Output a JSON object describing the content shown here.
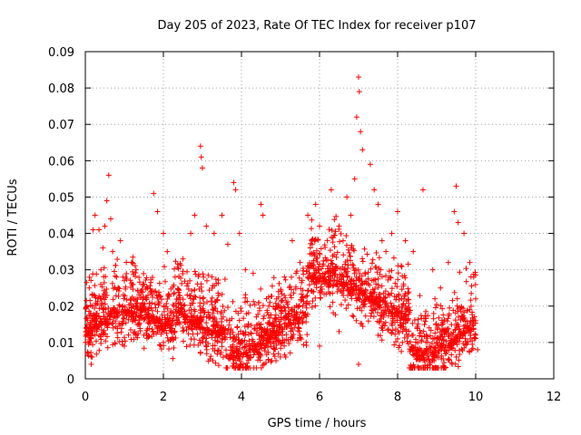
{
  "chart_data": {
    "type": "scatter",
    "title": "Day 205 of 2023, Rate Of TEC Index for receiver p107",
    "xlabel": "GPS time / hours",
    "ylabel": "ROTI / TECUs",
    "xlim": [
      0,
      12
    ],
    "ylim": [
      0,
      0.09
    ],
    "xticks": [
      0,
      2,
      4,
      6,
      8,
      10,
      12
    ],
    "xtick_labels": [
      "0",
      "2",
      "4",
      "6",
      "8",
      "10",
      "12"
    ],
    "yticks": [
      0,
      0.01,
      0.02,
      0.03,
      0.04,
      0.05,
      0.06,
      0.07,
      0.08,
      0.09
    ],
    "ytick_labels": [
      "0",
      "0.01",
      "0.02",
      "0.03",
      "0.04",
      "0.05",
      "0.06",
      "0.07",
      "0.08",
      "0.09"
    ],
    "grid": true,
    "marker": "+",
    "color": "#ff0000",
    "data_range_hours": [
      0,
      10
    ],
    "series": [
      {
        "name": "ROTI",
        "points": [
          [
            0.05,
            0.012
          ],
          [
            0.1,
            0.025
          ],
          [
            0.15,
            0.004
          ],
          [
            0.2,
            0.041
          ],
          [
            0.25,
            0.045
          ],
          [
            0.3,
            0.018
          ],
          [
            0.35,
            0.041
          ],
          [
            0.4,
            0.03
          ],
          [
            0.45,
            0.036
          ],
          [
            0.5,
            0.042
          ],
          [
            0.55,
            0.049
          ],
          [
            0.6,
            0.056
          ],
          [
            0.65,
            0.044
          ],
          [
            0.7,
            0.035
          ],
          [
            0.8,
            0.028
          ],
          [
            0.9,
            0.038
          ],
          [
            1.0,
            0.027
          ],
          [
            1.1,
            0.018
          ],
          [
            1.2,
            0.032
          ],
          [
            1.3,
            0.022
          ],
          [
            1.5,
            0.02
          ],
          [
            1.75,
            0.051
          ],
          [
            1.85,
            0.046
          ],
          [
            2.0,
            0.04
          ],
          [
            2.1,
            0.035
          ],
          [
            2.3,
            0.028
          ],
          [
            2.5,
            0.033
          ],
          [
            2.7,
            0.04
          ],
          [
            2.8,
            0.045
          ],
          [
            2.95,
            0.064
          ],
          [
            2.97,
            0.061
          ],
          [
            3.0,
            0.058
          ],
          [
            3.1,
            0.042
          ],
          [
            3.3,
            0.04
          ],
          [
            3.5,
            0.045
          ],
          [
            3.65,
            0.037
          ],
          [
            3.8,
            0.054
          ],
          [
            3.85,
            0.052
          ],
          [
            3.95,
            0.04
          ],
          [
            4.1,
            0.03
          ],
          [
            4.3,
            0.029
          ],
          [
            4.5,
            0.048
          ],
          [
            4.55,
            0.045
          ],
          [
            4.7,
            0.02
          ],
          [
            4.9,
            0.022
          ],
          [
            5.1,
            0.028
          ],
          [
            5.3,
            0.038
          ],
          [
            5.5,
            0.032
          ],
          [
            5.7,
            0.045
          ],
          [
            5.9,
            0.048
          ],
          [
            6.0,
            0.042
          ],
          [
            6.2,
            0.038
          ],
          [
            6.3,
            0.052
          ],
          [
            6.5,
            0.042
          ],
          [
            6.7,
            0.05
          ],
          [
            6.8,
            0.045
          ],
          [
            6.9,
            0.055
          ],
          [
            6.95,
            0.072
          ],
          [
            7.0,
            0.083
          ],
          [
            7.02,
            0.079
          ],
          [
            7.05,
            0.068
          ],
          [
            7.1,
            0.063
          ],
          [
            7.3,
            0.059
          ],
          [
            7.4,
            0.052
          ],
          [
            7.5,
            0.048
          ],
          [
            7.6,
            0.038
          ],
          [
            7.7,
            0.035
          ],
          [
            7.85,
            0.04
          ],
          [
            8.0,
            0.046
          ],
          [
            8.2,
            0.038
          ],
          [
            8.4,
            0.035
          ],
          [
            8.65,
            0.052
          ],
          [
            8.9,
            0.03
          ],
          [
            9.1,
            0.025
          ],
          [
            9.3,
            0.032
          ],
          [
            9.45,
            0.046
          ],
          [
            9.5,
            0.053
          ],
          [
            9.55,
            0.043
          ],
          [
            9.7,
            0.04
          ],
          [
            9.85,
            0.032
          ],
          [
            9.95,
            0.028
          ],
          [
            10.0,
            0.022
          ],
          [
            10.05,
            0.008
          ],
          [
            0.1,
            0.01
          ],
          [
            0.5,
            0.015
          ],
          [
            1.0,
            0.009
          ],
          [
            1.5,
            0.012
          ],
          [
            2.0,
            0.01
          ],
          [
            2.5,
            0.014
          ],
          [
            3.0,
            0.011
          ],
          [
            3.5,
            0.013
          ],
          [
            4.0,
            0.004
          ],
          [
            4.5,
            0.015
          ],
          [
            5.0,
            0.01
          ],
          [
            5.5,
            0.012
          ],
          [
            6.0,
            0.009
          ],
          [
            6.5,
            0.013
          ],
          [
            7.0,
            0.004
          ],
          [
            7.5,
            0.012
          ],
          [
            8.0,
            0.011
          ],
          [
            8.5,
            0.014
          ],
          [
            9.0,
            0.01
          ],
          [
            9.5,
            0.006
          ],
          [
            10.0,
            0.012
          ]
        ]
      }
    ]
  }
}
